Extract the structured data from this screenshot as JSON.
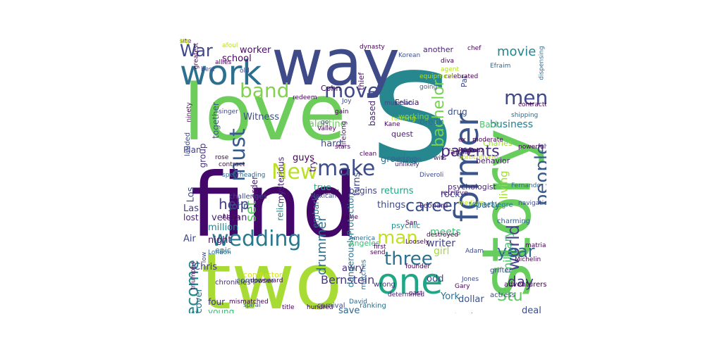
{
  "cloud": {
    "words": [
      {
        "text": "s",
        "color": "#26888e"
      },
      {
        "text": "love",
        "color": "#6ccd5a"
      },
      {
        "text": "find",
        "color": "#43076a"
      },
      {
        "text": "two",
        "color": "#a8db34"
      },
      {
        "text": "way",
        "color": "#3f4a89"
      },
      {
        "text": "story",
        "color": "#67cd5c"
      },
      {
        "text": "work",
        "color": "#2d6f8e"
      },
      {
        "text": "one",
        "color": "#21a685"
      },
      {
        "text": "former",
        "color": "#3a548c"
      },
      {
        "text": "New",
        "color": "#bcdf27"
      },
      {
        "text": "make",
        "color": "#3d4c8a"
      },
      {
        "text": "wedding",
        "color": "#2a788e"
      },
      {
        "text": "must",
        "color": "#375a8c"
      },
      {
        "text": "band",
        "color": "#7fd34e"
      },
      {
        "text": "move",
        "color": "#3e4a89"
      },
      {
        "text": "men",
        "color": "#3f4889"
      },
      {
        "text": "three",
        "color": "#2d718e"
      },
      {
        "text": "War",
        "color": "#3f4788"
      },
      {
        "text": "people",
        "color": "#375b8d"
      },
      {
        "text": "career",
        "color": "#3b528b"
      },
      {
        "text": "world",
        "color": "#404387"
      },
      {
        "text": "man",
        "color": "#c2df23"
      },
      {
        "text": "year",
        "color": "#31688e"
      },
      {
        "text": "become",
        "color": "#23898e"
      },
      {
        "text": "bachelor",
        "color": "#77d153"
      },
      {
        "text": "parents",
        "color": "#472d7b"
      },
      {
        "text": "day",
        "color": "#46327e"
      },
      {
        "text": "Stu",
        "color": "#5cc863"
      },
      {
        "text": "help",
        "color": "#433e85"
      },
      {
        "text": "set",
        "color": "#5ec962"
      },
      {
        "text": "movie",
        "color": "#25858e"
      },
      {
        "text": "drummer",
        "color": "#2d708e"
      },
      {
        "text": "Bernstein",
        "color": "#443a83"
      },
      {
        "text": "military",
        "color": "#4ac16d"
      },
      {
        "text": "living",
        "color": "#a5db36"
      },
      {
        "text": "business",
        "color": "#287c8e"
      },
      {
        "text": "school",
        "color": "#450559"
      },
      {
        "text": "worker",
        "color": "#470d60"
      },
      {
        "text": "Witness",
        "color": "#3b518b"
      },
      {
        "text": "Valentine",
        "color": "#69cd5b"
      },
      {
        "text": "hard",
        "color": "#3e4989"
      },
      {
        "text": "guys",
        "color": "#440154"
      },
      {
        "text": "growing",
        "color": "#2c728e"
      },
      {
        "text": "turns",
        "color": "#3f4889"
      },
      {
        "text": "returns",
        "color": "#20a386"
      },
      {
        "text": "things",
        "color": "#3e4a89"
      },
      {
        "text": "party",
        "color": "#31678e"
      },
      {
        "text": "rock",
        "color": "#3a538b"
      },
      {
        "text": "meets",
        "color": "#3dbc74"
      },
      {
        "text": "writer",
        "color": "#424186"
      },
      {
        "text": "girl",
        "color": "#9fda3a"
      },
      {
        "text": "Chris",
        "color": "#453581"
      },
      {
        "text": "awry",
        "color": "#472c7a"
      },
      {
        "text": "odd",
        "color": "#414487"
      },
      {
        "text": "York",
        "color": "#2e6f8e"
      },
      {
        "text": "dollar",
        "color": "#3a548c"
      },
      {
        "text": "deal",
        "color": "#3e4c8a"
      },
      {
        "text": "relationship",
        "color": "#287d8e"
      },
      {
        "text": "woman",
        "color": "#2f6c8e"
      },
      {
        "text": "run",
        "color": "#25838e"
      },
      {
        "text": "city",
        "color": "#2c738e"
      },
      {
        "text": "save",
        "color": "#31668e"
      },
      {
        "text": "four",
        "color": "#46337f"
      },
      {
        "text": "young",
        "color": "#3aba76"
      },
      {
        "text": "Vegas",
        "color": "#a2da37"
      },
      {
        "text": "complete",
        "color": "#27808e"
      },
      {
        "text": "discover",
        "color": "#2b748e"
      },
      {
        "text": "veteran",
        "color": "#482878"
      },
      {
        "text": "John",
        "color": "#3b528b"
      },
      {
        "text": "million",
        "color": "#25838e"
      },
      {
        "text": "night",
        "color": "#471063"
      },
      {
        "text": "Air",
        "color": "#3e4989"
      },
      {
        "text": "lost",
        "color": "#482475"
      },
      {
        "text": "Las",
        "color": "#433e85"
      },
      {
        "text": "Los",
        "color": "#3e4a89"
      },
      {
        "text": "Plan",
        "color": "#424086"
      },
      {
        "text": "group",
        "color": "#46307e"
      },
      {
        "text": "together",
        "color": "#38598c"
      },
      {
        "text": "order",
        "color": "#481a6c"
      },
      {
        "text": "mysterious",
        "color": "#482979"
      },
      {
        "text": "true",
        "color": "#22a884"
      },
      {
        "text": "try",
        "color": "#471365"
      },
      {
        "text": "begins",
        "color": "#414287"
      },
      {
        "text": "based",
        "color": "#482576"
      },
      {
        "text": "break",
        "color": "#2d708e"
      },
      {
        "text": "drug",
        "color": "#3b518b"
      },
      {
        "text": "Back",
        "color": "#4ec36b"
      },
      {
        "text": "Charles",
        "color": "#9bd93c"
      },
      {
        "text": "behavior",
        "color": "#482071"
      },
      {
        "text": "around",
        "color": "#1f9e89"
      },
      {
        "text": "family",
        "color": "#481769"
      },
      {
        "text": "another",
        "color": "#482475"
      },
      {
        "text": "Pat",
        "color": "#3e4989"
      },
      {
        "text": "Felicia",
        "color": "#481467"
      },
      {
        "text": "working",
        "color": "#7ad151"
      },
      {
        "text": "quest",
        "color": "#481b6d"
      },
      {
        "text": "Cohn",
        "color": "#440256"
      },
      {
        "text": "thief",
        "color": "#471365"
      },
      {
        "text": "lifelong",
        "color": "#482374"
      },
      {
        "text": "embark",
        "color": "#2a788e"
      },
      {
        "text": "dangerouslyProtection",
        "color": "#2c738e"
      },
      {
        "text": "Angeles",
        "color": "#3aba76"
      },
      {
        "text": "psychic",
        "color": "#20928c"
      },
      {
        "text": "relic",
        "color": "#25848e"
      },
      {
        "text": "epic",
        "color": "#287c8e"
      },
      {
        "text": "challenges",
        "color": "#3e4989"
      },
      {
        "text": "composer",
        "color": "#34618d"
      },
      {
        "text": "conductor",
        "color": "#d2e21b"
      },
      {
        "text": "chronicles",
        "color": "#472d7b"
      },
      {
        "text": "lauded",
        "color": "#3e4a89"
      },
      {
        "text": "psychologist",
        "color": "#482173"
      },
      {
        "text": "Montealegre",
        "color": "#27808e"
      },
      {
        "text": "charming",
        "color": "#355f8d"
      },
      {
        "text": "grifter",
        "color": "#3e4989"
      },
      {
        "text": "adventurers",
        "color": "#440154"
      },
      {
        "text": "actress",
        "color": "#3e4989"
      },
      {
        "text": "ranking",
        "color": "#2c728e"
      },
      {
        "text": "wrong",
        "color": "#472f7d"
      },
      {
        "text": "matches",
        "color": "#2e6e8e"
      },
      {
        "text": "carnival",
        "color": "#3e4a89"
      },
      {
        "text": "retrieve",
        "color": "#481f70"
      },
      {
        "text": "Leonard",
        "color": "#482475"
      },
      {
        "text": "powerful",
        "color": "#440154"
      },
      {
        "text": "writer",
        "color": "#424186"
      },
      {
        "text": "alcoholism",
        "color": "#3b528b"
      },
      {
        "text": "treacherous",
        "color": "#440154"
      },
      {
        "text": "Afghanistan",
        "color": "#31688e"
      },
      {
        "text": "character",
        "color": "#3e4a89"
      },
      {
        "text": "afoul",
        "color": "#b5de2b"
      },
      {
        "text": "greatest",
        "color": "#440154"
      },
      {
        "text": "dynasty",
        "color": "#440154"
      },
      {
        "text": "Korean",
        "color": "#3b528b"
      },
      {
        "text": "chef",
        "color": "#440154"
      },
      {
        "text": "old",
        "color": "#3e4a89"
      },
      {
        "text": "diva",
        "color": "#440154"
      },
      {
        "text": "Efraim",
        "color": "#31688e"
      },
      {
        "text": "musician",
        "color": "#3e4a89"
      },
      {
        "text": "celebrated",
        "color": "#440154"
      },
      {
        "text": "going",
        "color": "#31688e"
      },
      {
        "text": "redeem",
        "color": "#440154"
      },
      {
        "text": "Joy",
        "color": "#3e4a89"
      },
      {
        "text": "running",
        "color": "#b5de2b"
      },
      {
        "text": "Kane",
        "color": "#440154"
      },
      {
        "text": "ninety",
        "color": "#440154"
      },
      {
        "text": "singer",
        "color": "#3e4a89"
      },
      {
        "text": "clean",
        "color": "#440154"
      },
      {
        "text": "Pentagon",
        "color": "#31688e"
      },
      {
        "text": "stars",
        "color": "#440154"
      },
      {
        "text": "unlikely",
        "color": "#482475"
      },
      {
        "text": "contract",
        "color": "#440154"
      },
      {
        "text": "Mexican",
        "color": "#3e4a89"
      },
      {
        "text": "wits",
        "color": "#482475"
      },
      {
        "text": "Packouz",
        "color": "#440154"
      },
      {
        "text": "Diveroli",
        "color": "#3e4a89"
      },
      {
        "text": "Fernando",
        "color": "#31688e"
      },
      {
        "text": "medium",
        "color": "#b5de2b"
      },
      {
        "text": "navigation",
        "color": "#3e4a89"
      },
      {
        "text": "Alana",
        "color": "#440154"
      },
      {
        "text": "fame",
        "color": "#440154"
      },
      {
        "text": "America",
        "color": "#31688e"
      },
      {
        "text": "San",
        "color": "#440154"
      },
      {
        "text": "destroyed",
        "color": "#440154"
      },
      {
        "text": "Loosely",
        "color": "#440154"
      },
      {
        "text": "first",
        "color": "#440154"
      },
      {
        "text": "send",
        "color": "#440154"
      },
      {
        "text": "Adam",
        "color": "#3e4a89"
      },
      {
        "text": "matriarch",
        "color": "#440154"
      },
      {
        "text": "London",
        "color": "#31688e"
      },
      {
        "text": "triumphs",
        "color": "#440154"
      },
      {
        "text": "Michelin",
        "color": "#440154"
      },
      {
        "text": "low",
        "color": "#3e4a89"
      },
      {
        "text": "founder",
        "color": "#440154"
      },
      {
        "text": "determined",
        "color": "#482475"
      },
      {
        "text": "mismatched",
        "color": "#440154"
      },
      {
        "text": "spiral",
        "color": "#31688e"
      },
      {
        "text": "title",
        "color": "#440154"
      },
      {
        "text": "hundred",
        "color": "#440154"
      },
      {
        "text": "David",
        "color": "#31688e"
      },
      {
        "text": "past",
        "color": "#440154"
      },
      {
        "text": "Jones",
        "color": "#3e4a89"
      },
      {
        "text": "Gary",
        "color": "#440154"
      },
      {
        "text": "gain",
        "color": "#440154"
      },
      {
        "text": "go",
        "color": "#3e4a89"
      },
      {
        "text": "Valley",
        "color": "#440154"
      },
      {
        "text": "allies",
        "color": "#440154"
      },
      {
        "text": "best",
        "color": "#3e4a89"
      },
      {
        "text": "equipment",
        "color": "#b5de2b"
      },
      {
        "text": "agent",
        "color": "#b5de2b"
      },
      {
        "text": "dispensing",
        "color": "#31688e"
      },
      {
        "text": "cartel",
        "color": "#440154"
      },
      {
        "text": "spearheading",
        "color": "#31688e"
      },
      {
        "text": "rose",
        "color": "#440154"
      },
      {
        "text": "ex",
        "color": "#440154"
      },
      {
        "text": "horticulturist",
        "color": "#b5de2b"
      },
      {
        "text": "moderate",
        "color": "#440154"
      },
      {
        "text": "shipping",
        "color": "#31688e"
      },
      {
        "text": "downward",
        "color": "#440154"
      },
      {
        "text": "contractor",
        "color": "#440154"
      },
      {
        "text": "site",
        "color": "#440154"
      },
      {
        "text": "Mo",
        "color": "#b5de2b"
      },
      {
        "text": "big",
        "color": "#b5de2b"
      }
    ]
  }
}
